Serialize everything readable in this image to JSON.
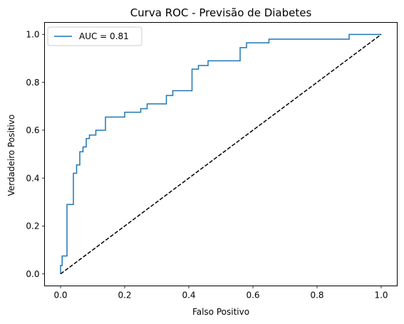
{
  "chart_data": {
    "type": "line",
    "title": "Curva ROC - Previsão de Diabetes",
    "xlabel": "Falso Positivo",
    "ylabel": "Verdadeiro Positivo",
    "xlim": [
      -0.05,
      1.05
    ],
    "ylim": [
      -0.05,
      1.05
    ],
    "xticks": [
      0.0,
      0.2,
      0.4,
      0.6,
      0.8,
      1.0
    ],
    "yticks": [
      0.0,
      0.2,
      0.4,
      0.6,
      0.8,
      1.0
    ],
    "xtick_labels": [
      "0.0",
      "0.2",
      "0.4",
      "0.6",
      "0.8",
      "1.0"
    ],
    "ytick_labels": [
      "0.0",
      "0.2",
      "0.4",
      "0.6",
      "0.8",
      "1.0"
    ],
    "grid": false,
    "legend_position": "upper-left",
    "series": [
      {
        "name": "AUC = 0.81",
        "color": "#1f77b4",
        "style": "step",
        "x": [
          0.0,
          0.0,
          0.005,
          0.005,
          0.02,
          0.02,
          0.04,
          0.04,
          0.05,
          0.05,
          0.06,
          0.06,
          0.07,
          0.07,
          0.08,
          0.08,
          0.09,
          0.09,
          0.11,
          0.11,
          0.14,
          0.14,
          0.2,
          0.2,
          0.25,
          0.25,
          0.27,
          0.27,
          0.33,
          0.33,
          0.35,
          0.35,
          0.41,
          0.41,
          0.43,
          0.43,
          0.46,
          0.46,
          0.56,
          0.56,
          0.58,
          0.58,
          0.65,
          0.65,
          0.9,
          0.9,
          1.0
        ],
        "y": [
          0.0,
          0.035,
          0.035,
          0.075,
          0.075,
          0.29,
          0.29,
          0.42,
          0.42,
          0.455,
          0.455,
          0.51,
          0.51,
          0.53,
          0.53,
          0.565,
          0.565,
          0.58,
          0.58,
          0.6,
          0.6,
          0.655,
          0.655,
          0.675,
          0.675,
          0.69,
          0.69,
          0.71,
          0.71,
          0.745,
          0.745,
          0.765,
          0.765,
          0.855,
          0.855,
          0.87,
          0.87,
          0.89,
          0.89,
          0.945,
          0.945,
          0.965,
          0.965,
          0.98,
          0.98,
          1.0,
          1.0
        ]
      },
      {
        "name": "",
        "color": "#000000",
        "style": "dashed",
        "x": [
          0.0,
          1.0
        ],
        "y": [
          0.0,
          1.0
        ]
      }
    ]
  }
}
